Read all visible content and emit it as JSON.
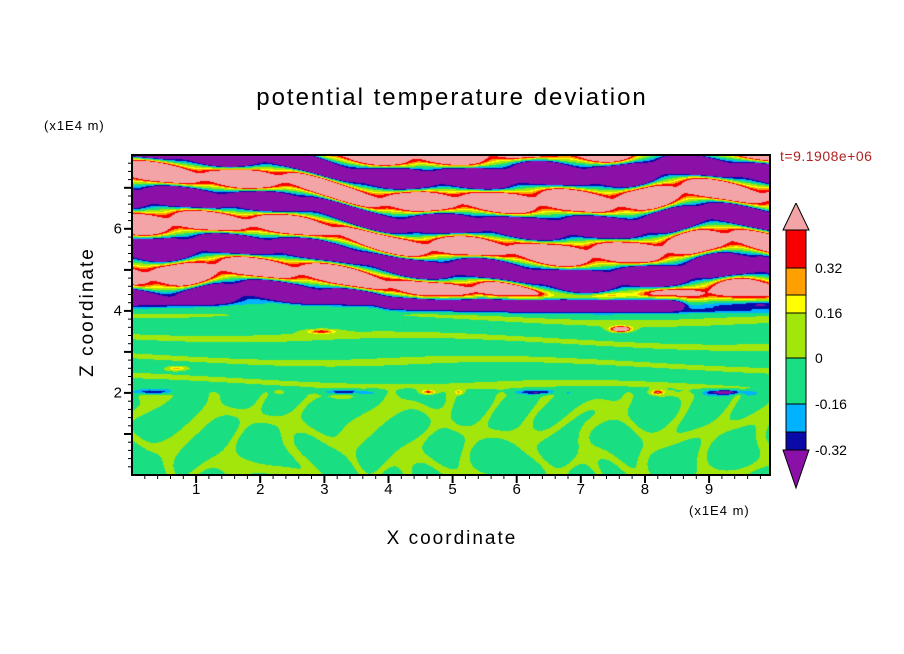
{
  "title": "potential temperature deviation",
  "timestamp": "t=9.1908e+06",
  "colors": {
    "timestamp": "#b22222",
    "frame": "#000000",
    "background": "#ffffff"
  },
  "axes": {
    "x_label": "X coordinate",
    "x_unit": "(x1E4 m)",
    "y_label": "Z coordinate",
    "y_unit": "(x1E4 m)",
    "x_ticks": [
      "1",
      "2",
      "3",
      "4",
      "5",
      "6",
      "7",
      "8",
      "9"
    ],
    "y_ticks": [
      "2",
      "4",
      "6"
    ]
  },
  "colorbar": {
    "top_arrow_color": "#f2a4a6",
    "bottom_arrow_color": "#8a10a8",
    "segment_colors": [
      "#f80000",
      "#ffa000",
      "#ffff00",
      "#a2e60c",
      "#1ade82",
      "#00b2ff",
      "#0a0aa8"
    ],
    "segment_heights": [
      38,
      27,
      18,
      45,
      46,
      28,
      18
    ],
    "labels": [
      {
        "text": "0.32",
        "after_segment": 1
      },
      {
        "text": "0.16",
        "after_segment": 3
      },
      {
        "text": "0",
        "after_segment": 4
      },
      {
        "text": "-0.16",
        "after_segment": 5
      },
      {
        "text": "-0.32",
        "after_segment": 7
      }
    ]
  },
  "chart_data": {
    "type": "heatmap",
    "title": "potential temperature deviation",
    "xlabel": "X coordinate (x1E4 m)",
    "ylabel": "Z coordinate (x1E4 m)",
    "time_label": "t=9.1908e+06",
    "x_range": [
      0,
      9.95
    ],
    "z_range": [
      0,
      7.8
    ],
    "x_tick_values": [
      1,
      2,
      3,
      4,
      5,
      6,
      7,
      8,
      9
    ],
    "z_tick_values": [
      2,
      4,
      6
    ],
    "minor_tick_step": 0.2,
    "levels": [
      0.4,
      0.32,
      0.24,
      0.16,
      0,
      -0.16,
      -0.24,
      -0.32
    ],
    "palette": [
      "#f2a4a6",
      "#f80000",
      "#ffa000",
      "#ffff00",
      "#a2e60c",
      "#1ade82",
      "#00b2ff",
      "#0a0aa8",
      "#8a10a8"
    ],
    "features": {
      "wave_region_zmin": 4.2,
      "wave_band_vertical_wavelength": 1.15,
      "inversion_band": {
        "z": 4.18,
        "x_start": 3.8,
        "x_end": 8.6,
        "min_value": -0.4
      },
      "boundary_layer_top_line_z": 2.02,
      "convective_cell_region_zmax": 2.0,
      "background_value_lower_layer": -0.08
    }
  }
}
